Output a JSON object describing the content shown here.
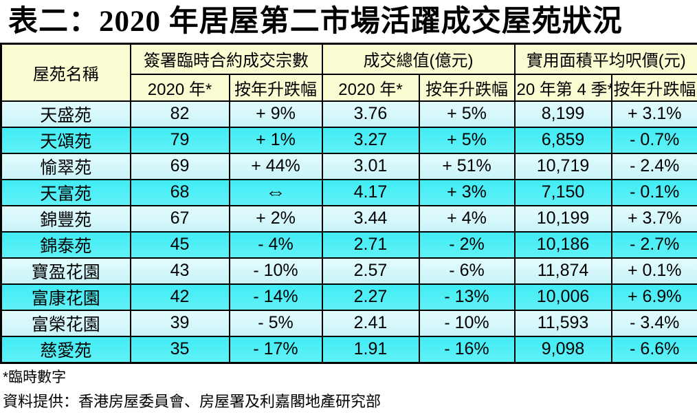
{
  "title": "表二：2020 年居屋第二市場活躍成交屋苑狀況",
  "colors": {
    "header_bg": "#fcfcd2",
    "row_light": "#cff6fa",
    "row_dark": "#50eff6",
    "border": "#000000",
    "text": "#000000"
  },
  "table": {
    "corner_header": "屋苑名稱",
    "groups": [
      {
        "label": "簽署臨時合約成交宗數",
        "sub": [
          "2020 年*",
          "按年升跌幅"
        ]
      },
      {
        "label": "成交總值(億元)",
        "sub": [
          "2020 年*",
          "按年升跌幅"
        ]
      },
      {
        "label": "實用面積平均呎價(元)",
        "sub": [
          "20 年第 4 季*",
          "按年升跌幅"
        ]
      }
    ],
    "rows": [
      {
        "name": "天盛苑",
        "deals": "82",
        "deals_change": "+ 9%",
        "value": "3.76",
        "value_change": "+ 5%",
        "price": "8,199",
        "price_change": "+ 3.1%"
      },
      {
        "name": "天頌苑",
        "deals": "79",
        "deals_change": "+ 1%",
        "value": "3.27",
        "value_change": "+ 5%",
        "price": "6,859",
        "price_change": "- 0.7%"
      },
      {
        "name": "愉翠苑",
        "deals": "69",
        "deals_change": "+ 44%",
        "value": "3.01",
        "value_change": "+ 51%",
        "price": "10,719",
        "price_change": "- 2.4%"
      },
      {
        "name": "天富苑",
        "deals": "68",
        "deals_change": "⇔",
        "value": "4.17",
        "value_change": "+ 3%",
        "price": "7,150",
        "price_change": "- 0.1%"
      },
      {
        "name": "錦豐苑",
        "deals": "67",
        "deals_change": "+ 2%",
        "value": "3.44",
        "value_change": "+ 4%",
        "price": "10,199",
        "price_change": "+ 3.7%"
      },
      {
        "name": "錦泰苑",
        "deals": "45",
        "deals_change": "- 4%",
        "value": "2.71",
        "value_change": "- 2%",
        "price": "10,186",
        "price_change": "- 2.7%"
      },
      {
        "name": "寶盈花園",
        "deals": "43",
        "deals_change": "- 10%",
        "value": "2.57",
        "value_change": "- 6%",
        "price": "11,874",
        "price_change": "+ 0.1%"
      },
      {
        "name": "富康花園",
        "deals": "42",
        "deals_change": "- 14%",
        "value": "2.27",
        "value_change": "- 13%",
        "price": "10,006",
        "price_change": "+ 6.9%"
      },
      {
        "name": "富榮花園",
        "deals": "39",
        "deals_change": "- 5%",
        "value": "2.41",
        "value_change": "- 10%",
        "price": "11,593",
        "price_change": "- 3.4%"
      },
      {
        "name": "慈愛苑",
        "deals": "35",
        "deals_change": "- 17%",
        "value": "1.91",
        "value_change": "- 16%",
        "price": "9,098",
        "price_change": "- 6.6%"
      }
    ]
  },
  "footnotes": {
    "line1": "*臨時數字",
    "line2": "資料提供：香港房屋委員會、房屋署及利嘉閣地產研究部"
  },
  "chart_data": {
    "type": "table",
    "title": "表二：2020 年居屋第二市場活躍成交屋苑狀況",
    "columns": [
      "屋苑名稱",
      "簽署臨時合約成交宗數 2020 年*",
      "簽署臨時合約成交宗數 按年升跌幅",
      "成交總值(億元) 2020 年*",
      "成交總值(億元) 按年升跌幅",
      "實用面積平均呎價(元) 20 年第 4 季*",
      "實用面積平均呎價(元) 按年升跌幅"
    ],
    "rows": [
      [
        "天盛苑",
        82,
        "+9%",
        3.76,
        "+5%",
        8199,
        "+3.1%"
      ],
      [
        "天頌苑",
        79,
        "+1%",
        3.27,
        "+5%",
        6859,
        "-0.7%"
      ],
      [
        "愉翠苑",
        69,
        "+44%",
        3.01,
        "+51%",
        10719,
        "-2.4%"
      ],
      [
        "天富苑",
        68,
        "0%",
        4.17,
        "+3%",
        7150,
        "-0.1%"
      ],
      [
        "錦豐苑",
        67,
        "+2%",
        3.44,
        "+4%",
        10199,
        "+3.7%"
      ],
      [
        "錦泰苑",
        45,
        "-4%",
        2.71,
        "-2%",
        10186,
        "-2.7%"
      ],
      [
        "寶盈花園",
        43,
        "-10%",
        2.57,
        "-6%",
        11874,
        "+0.1%"
      ],
      [
        "富康花園",
        42,
        "-14%",
        2.27,
        "-13%",
        10006,
        "+6.9%"
      ],
      [
        "富榮花園",
        39,
        "-5%",
        2.41,
        "-10%",
        11593,
        "-3.4%"
      ],
      [
        "慈愛苑",
        35,
        "-17%",
        1.91,
        "-16%",
        9098,
        "-6.6%"
      ]
    ],
    "footnotes": [
      "*臨時數字",
      "資料提供：香港房屋委員會、房屋署及利嘉閣地產研究部"
    ]
  }
}
